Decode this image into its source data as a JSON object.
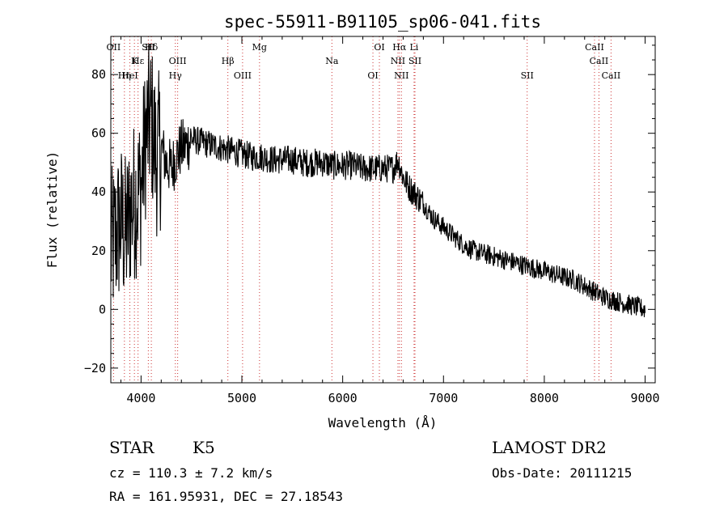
{
  "chart_data": {
    "type": "line",
    "title": "spec-55911-B91105_sp06-041.fits",
    "xlabel": "Wavelength (Å)",
    "ylabel": "Flux (relative)",
    "xlim": [
      3700,
      9100
    ],
    "ylim": [
      -25,
      93
    ],
    "xticks": [
      4000,
      5000,
      6000,
      7000,
      8000,
      9000
    ],
    "yticks": [
      -20,
      0,
      20,
      40,
      60,
      80
    ],
    "grid": false,
    "line_color": "#000000",
    "marker_color": "#cc3333",
    "spectral_lines": [
      {
        "label": "Hα",
        "wave": 6563
      },
      {
        "label": "Hβ",
        "wave": 4861
      },
      {
        "label": "Hγ",
        "wave": 4340
      },
      {
        "label": "Hδ",
        "wave": 4102
      },
      {
        "label": "Hε",
        "wave": 3970
      },
      {
        "label": "Hη",
        "wave": 3835
      },
      {
        "label": "OII",
        "wave": 3727
      },
      {
        "label": "K",
        "wave": 3934
      },
      {
        "label": "HeI",
        "wave": 3889
      },
      {
        "label": "SII",
        "wave": 4072
      },
      {
        "label": "OIII",
        "wave": 4363
      },
      {
        "label": "OIII",
        "wave": 5007
      },
      {
        "label": "Mg",
        "wave": 5175
      },
      {
        "label": "Na",
        "wave": 5893
      },
      {
        "label": "OI",
        "wave": 6300
      },
      {
        "label": "OI",
        "wave": 6364
      },
      {
        "label": "NII",
        "wave": 6548
      },
      {
        "label": "NII",
        "wave": 6583
      },
      {
        "label": "Li",
        "wave": 6708
      },
      {
        "label": "SII",
        "wave": 6717
      },
      {
        "label": "SII",
        "wave": 7830
      },
      {
        "label": "CaII",
        "wave": 8498
      },
      {
        "label": "CaII",
        "wave": 8542
      },
      {
        "label": "CaII",
        "wave": 8662
      }
    ],
    "series": [
      {
        "x": [
          3700,
          3750,
          3800,
          3850,
          3900,
          3950,
          4000,
          4050,
          4100,
          4150,
          4200,
          4250,
          4300,
          4350,
          4400,
          4450,
          4500,
          4600,
          4700,
          4800,
          4900,
          5000,
          5100,
          5200,
          5300,
          5400,
          5500,
          5600,
          5700,
          5800,
          5900,
          6000,
          6100,
          6200,
          6300,
          6400,
          6500,
          6550,
          6600,
          6650,
          6700,
          6800,
          6900,
          7000,
          7100,
          7200,
          7300,
          7400,
          7500,
          7600,
          7700,
          7800,
          7900,
          8000,
          8100,
          8200,
          8300,
          8400,
          8500,
          8600,
          8700,
          8800,
          8900,
          9000
        ],
        "y": [
          20,
          25,
          30,
          25,
          35,
          38,
          42,
          60,
          65,
          52,
          55,
          50,
          48,
          52,
          55,
          56,
          58,
          57,
          56,
          55,
          54,
          53,
          52,
          52,
          51,
          51,
          51,
          50,
          50,
          50,
          49,
          49,
          49,
          48,
          48,
          48,
          48,
          51,
          45,
          42,
          40,
          36,
          31,
          28,
          25,
          22,
          20,
          19,
          18,
          17,
          16,
          15,
          14,
          13,
          12,
          11,
          10,
          8,
          6,
          4,
          3,
          2,
          1,
          0
        ]
      }
    ]
  },
  "footer": {
    "object_class": "STAR",
    "subclass": "K5",
    "survey": "LAMOST DR2",
    "cz": "cz = 110.3 ± 7.2 km/s",
    "obs_date": "Obs-Date: 20111215",
    "coords": "RA = 161.95931, DEC =  27.18543"
  }
}
